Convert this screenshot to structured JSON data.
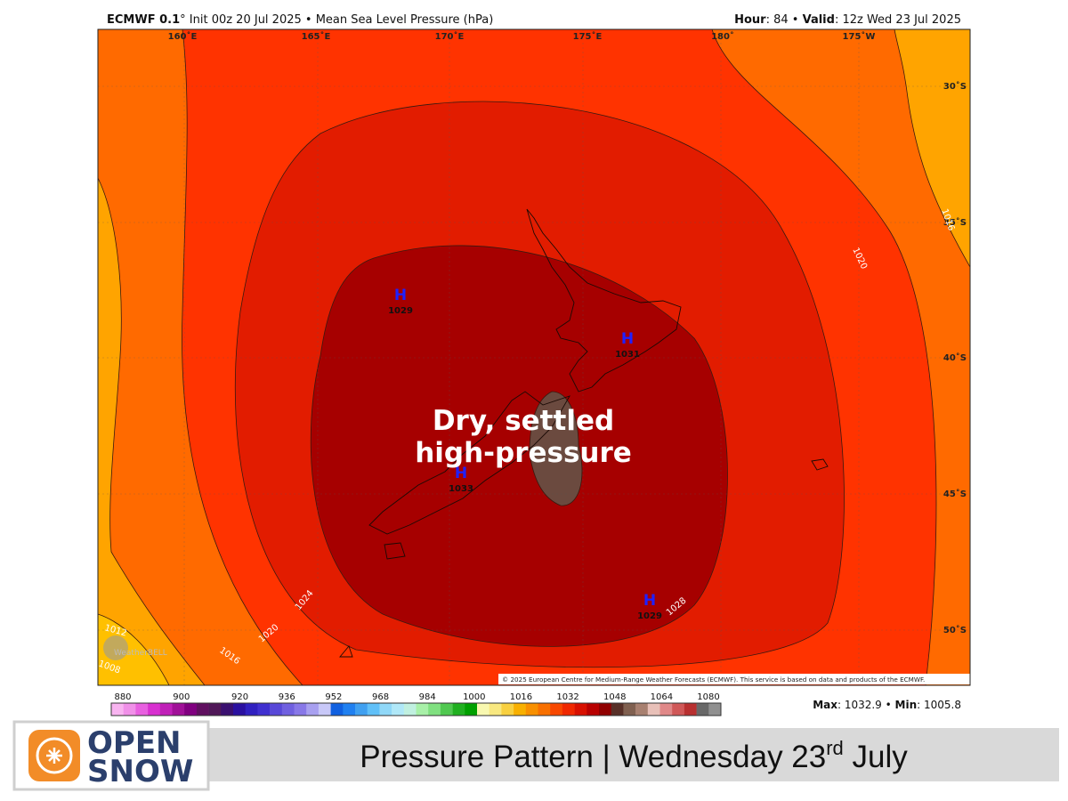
{
  "header": {
    "model": "ECMWF 0.1",
    "description": "° Init 00z 20 Jul 2025 • Mean Sea Level Pressure (hPa)",
    "hour_label": "Hour",
    "hour_value": ": 84 • ",
    "valid_label": "Valid",
    "valid_value": ": 12z Wed 23 Jul 2025"
  },
  "map": {
    "longitudes": [
      "160˚E",
      "165˚E",
      "170˚E",
      "175˚E",
      "180˚",
      "175˚W"
    ],
    "latitudes": [
      "30˚S",
      "35˚S",
      "40˚S",
      "45˚S",
      "50˚S"
    ],
    "contour_labels": [
      "1016",
      "1020",
      "1024",
      "1028",
      "1020",
      "1016",
      "1012",
      "1008"
    ],
    "highs": [
      {
        "symbol": "H",
        "value": "1029"
      },
      {
        "symbol": "H",
        "value": "1031"
      },
      {
        "symbol": "H",
        "value": "1033"
      },
      {
        "symbol": "H",
        "value": "1029"
      }
    ],
    "annotation": [
      "Dry, settled",
      "high-pressure"
    ],
    "copyright": "© 2025 European Centre for Medium-Range Weather Forecasts (ECMWF). This service is based on data and products of the ECMWF.",
    "watermark": "WeatherBELL"
  },
  "colorbar": {
    "ticks": [
      880,
      900,
      920,
      936,
      952,
      968,
      984,
      1000,
      1016,
      1032,
      1048,
      1064,
      1080
    ],
    "colors": [
      "#f8b4f0",
      "#f090e8",
      "#e860e0",
      "#d830d0",
      "#c020b8",
      "#a01098",
      "#800080",
      "#601060",
      "#501858",
      "#3a1070",
      "#2a10a0",
      "#3020c0",
      "#4030d0",
      "#5848d8",
      "#7060e0",
      "#8878e8",
      "#a8a0f0",
      "#c8c8f8",
      "#1060e0",
      "#2080f0",
      "#40a0f0",
      "#60c0f8",
      "#90d8f8",
      "#b0e8f8",
      "#c0f0e0",
      "#a8f0a8",
      "#80e080",
      "#50c850",
      "#20b020",
      "#00a000",
      "#f8f8b0",
      "#f8e880",
      "#f8d040",
      "#f8b000",
      "#f89000",
      "#f87000",
      "#f84800",
      "#f02800",
      "#d81000",
      "#b80000",
      "#900000",
      "#583028",
      "#806050",
      "#a88070",
      "#e8c0b8",
      "#e08888",
      "#d05858",
      "#b83030",
      "#686868",
      "#909090"
    ]
  },
  "stats": {
    "max_label": "Max",
    "max_value": ": 1032.9 • ",
    "min_label": "Min",
    "min_value": ": 1005.8"
  },
  "footer": {
    "logo": [
      "OPEN",
      "SNOW"
    ],
    "caption": [
      "Pressure Pattern | Wednesday 23",
      "rd",
      " July"
    ]
  }
}
